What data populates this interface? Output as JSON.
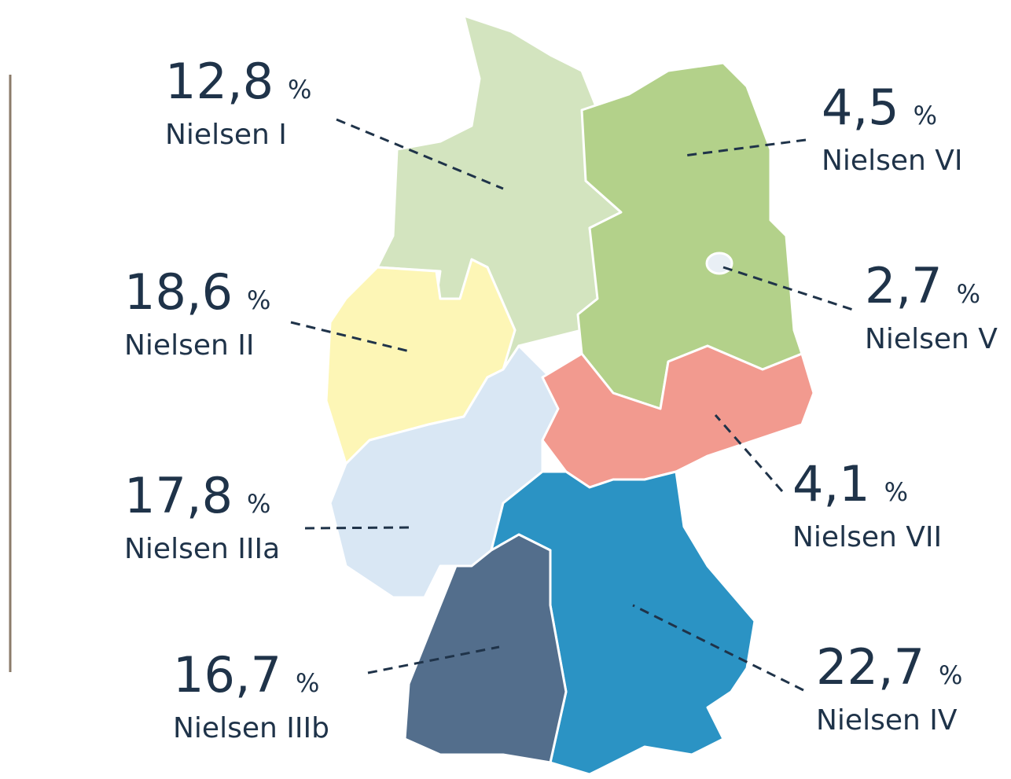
{
  "unit": "%",
  "regions": [
    {
      "value": "12,8",
      "name": "Nielsen I"
    },
    {
      "value": "4,5",
      "name": "Nielsen VI"
    },
    {
      "value": "2,7",
      "name": "Nielsen V"
    },
    {
      "value": "18,6",
      "name": "Nielsen II"
    },
    {
      "value": "4,1",
      "name": "Nielsen VII"
    },
    {
      "value": "17,8",
      "name": "Nielsen IIIa"
    },
    {
      "value": "16,7",
      "name": "Nielsen IIIb"
    },
    {
      "value": "22,7",
      "name": "Nielsen IV"
    }
  ]
}
